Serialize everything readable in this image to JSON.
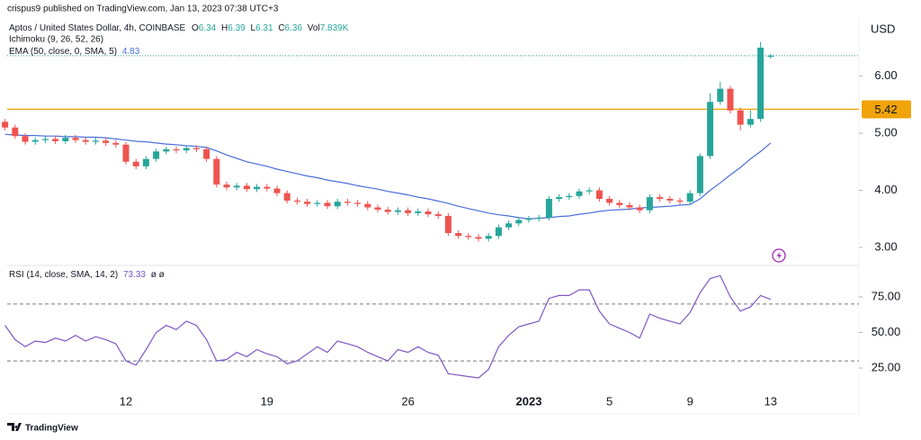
{
  "header": {
    "publisher": "crispus9 published on TradingView.com, Jan 13, 2023 07:38 UTC+3"
  },
  "footer": {
    "brand": "TradingView"
  },
  "chart_data": [
    {
      "type": "candlestick",
      "title": "Aptos / United States Dollar, 4h, COINBASE",
      "currency": "USD",
      "ohlc_labels": [
        "O",
        "H",
        "L",
        "C"
      ],
      "volume_label": "Vol",
      "volume": "7.839K",
      "indicator": "Ichimoku (9, 26, 52, 26)",
      "up_color": "#26a69a",
      "down_color": "#ef5350",
      "categories": [
        null,
        null,
        null,
        null,
        null,
        null,
        null,
        null,
        null,
        null,
        null,
        null,
        "12",
        null,
        null,
        null,
        null,
        null,
        null,
        null,
        null,
        null,
        null,
        null,
        null,
        null,
        "19",
        null,
        null,
        null,
        null,
        null,
        null,
        null,
        null,
        null,
        null,
        null,
        null,
        null,
        "26",
        null,
        null,
        null,
        null,
        null,
        null,
        null,
        null,
        null,
        null,
        null,
        "2023",
        null,
        null,
        null,
        null,
        null,
        null,
        null,
        "5",
        null,
        null,
        null,
        null,
        null,
        null,
        null,
        "9",
        null,
        null,
        null,
        null,
        null,
        null,
        null,
        "13"
      ],
      "open": [
        5.2,
        5.1,
        4.95,
        4.85,
        4.88,
        4.9,
        4.86,
        4.92,
        4.88,
        4.85,
        4.87,
        4.83,
        4.8,
        4.5,
        4.42,
        4.55,
        4.68,
        4.72,
        4.7,
        4.74,
        4.72,
        4.55,
        4.1,
        4.05,
        4.08,
        4.02,
        4.06,
        4.03,
        3.95,
        3.82,
        3.8,
        3.76,
        3.78,
        3.72,
        3.8,
        3.78,
        3.76,
        3.7,
        3.66,
        3.62,
        3.65,
        3.6,
        3.63,
        3.58,
        3.55,
        3.25,
        3.2,
        3.18,
        3.15,
        3.2,
        3.35,
        3.42,
        3.48,
        3.5,
        3.52,
        3.85,
        3.88,
        3.9,
        3.98,
        4.0,
        3.85,
        3.78,
        3.74,
        3.7,
        3.65,
        3.88,
        3.85,
        3.82,
        3.8,
        3.95,
        4.6,
        5.55,
        5.78,
        5.4,
        5.15,
        5.25,
        6.34
      ],
      "high": [
        5.25,
        5.15,
        5.0,
        4.93,
        4.95,
        4.95,
        4.97,
        4.97,
        4.93,
        4.92,
        4.92,
        4.88,
        4.85,
        4.55,
        4.6,
        4.73,
        4.77,
        4.77,
        4.79,
        4.79,
        4.77,
        4.6,
        4.15,
        4.13,
        4.13,
        4.11,
        4.11,
        4.08,
        4.0,
        3.87,
        3.85,
        3.83,
        3.83,
        3.85,
        3.85,
        3.83,
        3.81,
        3.75,
        3.71,
        3.7,
        3.7,
        3.68,
        3.68,
        3.63,
        3.6,
        3.3,
        3.25,
        3.23,
        3.25,
        3.4,
        3.47,
        3.53,
        3.55,
        3.57,
        3.9,
        3.93,
        3.95,
        4.03,
        4.05,
        4.05,
        3.9,
        3.83,
        3.79,
        3.75,
        3.93,
        3.93,
        3.9,
        3.87,
        4.0,
        4.65,
        5.7,
        5.9,
        5.83,
        5.45,
        5.4,
        6.6,
        6.39
      ],
      "low": [
        5.05,
        4.9,
        4.8,
        4.8,
        4.83,
        4.81,
        4.81,
        4.83,
        4.8,
        4.8,
        4.78,
        4.75,
        4.45,
        4.37,
        4.37,
        4.5,
        4.63,
        4.65,
        4.65,
        4.67,
        4.5,
        4.05,
        4.0,
        4.0,
        3.97,
        3.97,
        3.98,
        3.9,
        3.77,
        3.75,
        3.71,
        3.71,
        3.67,
        3.67,
        3.73,
        3.71,
        3.65,
        3.61,
        3.57,
        3.57,
        3.55,
        3.55,
        3.53,
        3.5,
        3.2,
        3.15,
        3.13,
        3.1,
        3.1,
        3.15,
        3.3,
        3.37,
        3.43,
        3.45,
        3.47,
        3.8,
        3.83,
        3.85,
        3.93,
        3.8,
        3.73,
        3.69,
        3.65,
        3.6,
        3.6,
        3.8,
        3.77,
        3.75,
        3.75,
        3.9,
        4.55,
        5.5,
        5.35,
        5.05,
        5.1,
        5.2,
        6.31
      ],
      "close": [
        5.1,
        4.95,
        4.85,
        4.88,
        4.9,
        4.86,
        4.92,
        4.88,
        4.85,
        4.87,
        4.83,
        4.8,
        4.5,
        4.42,
        4.55,
        4.68,
        4.72,
        4.7,
        4.74,
        4.72,
        4.55,
        4.1,
        4.05,
        4.08,
        4.02,
        4.06,
        4.03,
        3.95,
        3.82,
        3.8,
        3.76,
        3.78,
        3.72,
        3.8,
        3.78,
        3.76,
        3.7,
        3.66,
        3.62,
        3.65,
        3.6,
        3.63,
        3.58,
        3.55,
        3.25,
        3.2,
        3.18,
        3.15,
        3.2,
        3.35,
        3.42,
        3.48,
        3.5,
        3.52,
        3.85,
        3.88,
        3.9,
        3.98,
        4.0,
        3.85,
        3.78,
        3.74,
        3.7,
        3.65,
        3.88,
        3.85,
        3.82,
        3.8,
        3.95,
        4.6,
        5.55,
        5.78,
        5.4,
        5.15,
        5.25,
        6.5,
        6.36
      ],
      "ema": {
        "name": "EMA (50, close, 0, SMA, 5)",
        "color": "#4a6fdc",
        "values": [
          4.98,
          4.97,
          4.96,
          4.96,
          4.95,
          4.95,
          4.94,
          4.94,
          4.93,
          4.93,
          4.92,
          4.9,
          4.88,
          4.86,
          4.85,
          4.83,
          4.81,
          4.8,
          4.78,
          4.77,
          4.75,
          4.69,
          4.62,
          4.56,
          4.5,
          4.46,
          4.42,
          4.37,
          4.33,
          4.29,
          4.25,
          4.22,
          4.18,
          4.15,
          4.12,
          4.08,
          4.05,
          4.02,
          3.98,
          3.95,
          3.92,
          3.88,
          3.85,
          3.81,
          3.77,
          3.72,
          3.68,
          3.64,
          3.6,
          3.57,
          3.55,
          3.52,
          3.5,
          3.51,
          3.52,
          3.54,
          3.55,
          3.58,
          3.6,
          3.63,
          3.65,
          3.66,
          3.67,
          3.69,
          3.7,
          3.71,
          3.72,
          3.74,
          3.75,
          3.85,
          4.0,
          4.13,
          4.27,
          4.4,
          4.55,
          4.68,
          4.83
        ]
      },
      "level": {
        "value": 5.42,
        "color": "#f0a30a"
      },
      "ylim": [
        2.73,
        7.02
      ],
      "yticks": [
        {
          "value": 3,
          "label": "3.00"
        },
        {
          "value": 4,
          "label": "4.00"
        },
        {
          "value": 5,
          "label": "5.00"
        },
        {
          "value": 6,
          "label": "6.00"
        }
      ]
    },
    {
      "type": "line",
      "title": "RSI (14, close, SMA, 14, 2)",
      "placeholders": "ø ø",
      "color": "#7e57c2",
      "values": [
        55,
        45,
        40,
        44,
        43,
        46,
        44,
        48,
        44,
        47,
        45,
        42,
        30,
        27,
        38,
        50,
        55,
        52,
        58,
        55,
        45,
        30,
        31,
        36,
        33,
        38,
        35,
        33,
        28,
        30,
        35,
        40,
        36,
        44,
        42,
        40,
        36,
        33,
        30,
        38,
        36,
        40,
        36,
        34,
        21,
        20,
        19,
        18,
        24,
        40,
        48,
        54,
        56,
        58,
        74,
        76,
        76,
        80,
        80,
        65,
        56,
        53,
        50,
        46,
        63,
        60,
        58,
        56,
        64,
        78,
        88,
        90,
        75,
        65,
        68,
        76,
        73.33
      ],
      "bands": [
        30,
        70
      ],
      "ylim": [
        11.7,
        95.9
      ],
      "yticks": [
        {
          "value": 25,
          "label": "25.00"
        },
        {
          "value": 50,
          "label": "50.00"
        },
        {
          "value": 75,
          "label": "75.00"
        }
      ]
    }
  ]
}
